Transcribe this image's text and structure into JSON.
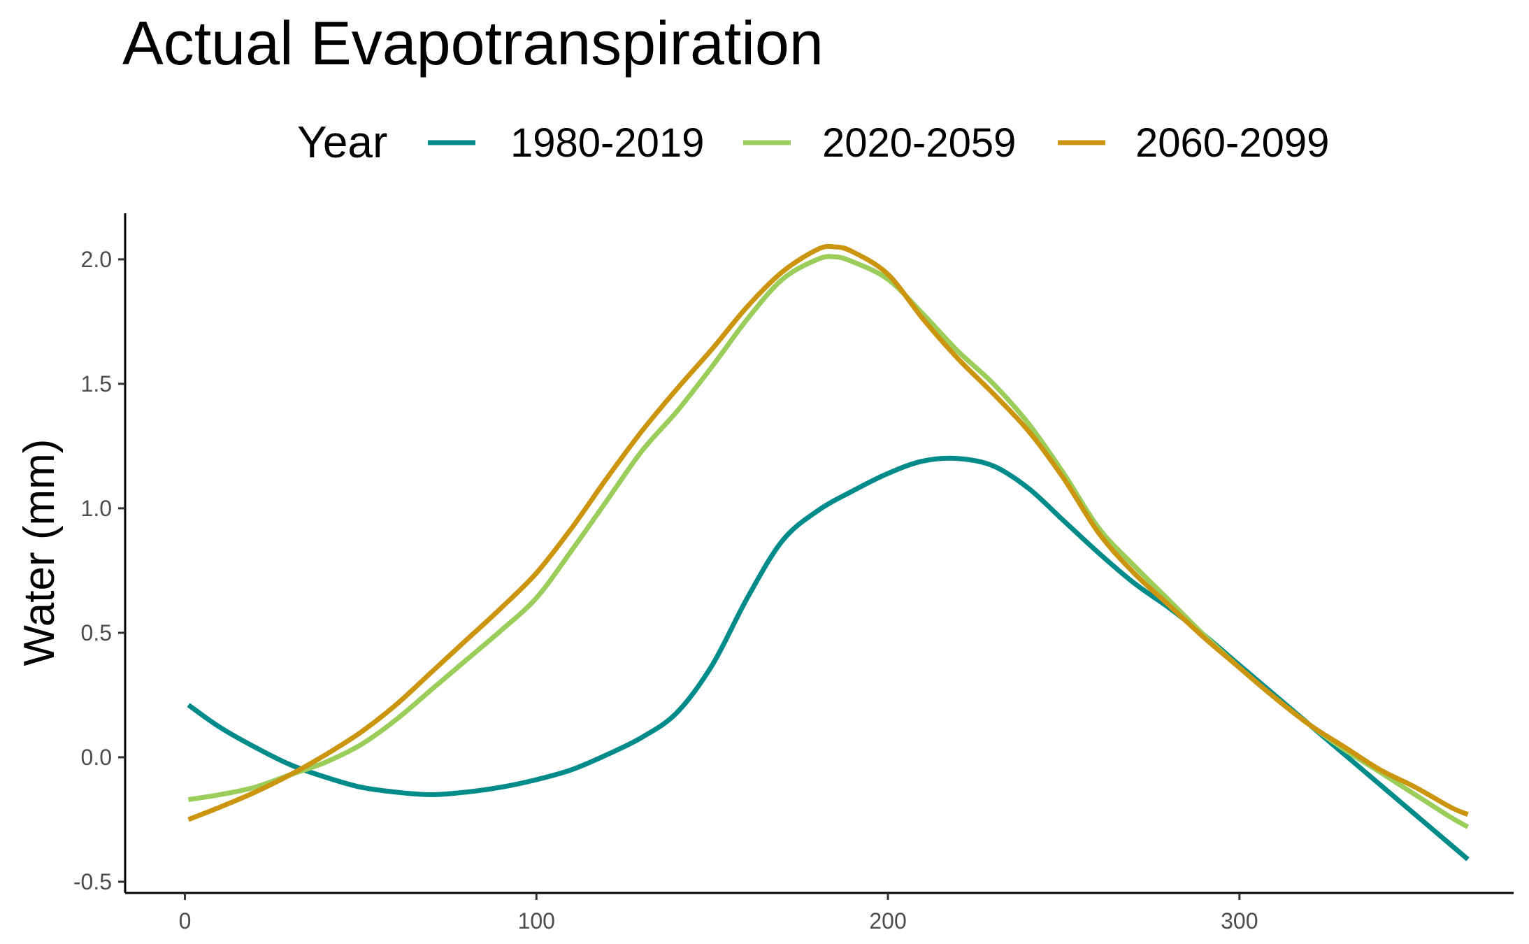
{
  "chart_data": {
    "type": "line",
    "title": "Actual Evapotranspiration",
    "xlabel": "",
    "ylabel": "Water (mm)",
    "xlim": [
      -17,
      378
    ],
    "ylim": [
      -0.545,
      2.185
    ],
    "x_ticks": [
      0,
      100,
      200,
      300
    ],
    "y_ticks": [
      -0.5,
      0.0,
      0.5,
      1.0,
      1.5,
      2.0
    ],
    "x_tick_labels": [
      "0",
      "100",
      "200",
      "300"
    ],
    "y_tick_labels": [
      "-0.5",
      "0.0",
      "0.5",
      "1.0",
      "1.5",
      "2.0"
    ],
    "grid": false,
    "legend": {
      "title": "Year",
      "position": "top",
      "entries": [
        "1980-2019",
        "2020-2059",
        "2060-2099"
      ]
    },
    "series": [
      {
        "name": "1980-2019",
        "color": "#008B8B",
        "x": [
          1,
          10,
          20,
          30,
          40,
          50,
          60,
          70,
          80,
          90,
          100,
          110,
          120,
          130,
          140,
          150,
          160,
          170,
          180,
          190,
          200,
          210,
          220,
          230,
          240,
          250,
          260,
          270,
          280,
          290,
          300,
          310,
          320,
          330,
          340,
          350,
          360,
          365
        ],
        "y": [
          0.21,
          0.12,
          0.04,
          -0.03,
          -0.08,
          -0.12,
          -0.14,
          -0.15,
          -0.14,
          -0.12,
          -0.09,
          -0.05,
          0.01,
          0.08,
          0.18,
          0.37,
          0.64,
          0.87,
          0.99,
          1.07,
          1.14,
          1.19,
          1.2,
          1.17,
          1.08,
          0.95,
          0.82,
          0.7,
          0.6,
          0.49,
          0.37,
          0.25,
          0.13,
          0.01,
          -0.11,
          -0.23,
          -0.35,
          -0.41
        ]
      },
      {
        "name": "2020-2059",
        "color": "#9ACD5A",
        "x": [
          1,
          10,
          20,
          30,
          40,
          50,
          60,
          70,
          80,
          90,
          100,
          110,
          120,
          130,
          140,
          150,
          160,
          170,
          180,
          185,
          190,
          200,
          210,
          220,
          230,
          240,
          250,
          260,
          270,
          280,
          290,
          300,
          310,
          320,
          330,
          340,
          350,
          360,
          365
        ],
        "y": [
          -0.17,
          -0.15,
          -0.12,
          -0.07,
          -0.02,
          0.05,
          0.15,
          0.27,
          0.39,
          0.51,
          0.64,
          0.83,
          1.03,
          1.23,
          1.39,
          1.57,
          1.76,
          1.92,
          2.0,
          2.01,
          1.99,
          1.92,
          1.78,
          1.63,
          1.5,
          1.34,
          1.14,
          0.92,
          0.77,
          0.63,
          0.49,
          0.36,
          0.24,
          0.13,
          0.03,
          -0.06,
          -0.15,
          -0.24,
          -0.28
        ]
      },
      {
        "name": "2060-2099",
        "color": "#CC9510",
        "x": [
          1,
          10,
          20,
          30,
          40,
          50,
          60,
          70,
          80,
          90,
          100,
          110,
          120,
          130,
          140,
          150,
          160,
          170,
          180,
          185,
          190,
          200,
          210,
          220,
          230,
          240,
          250,
          260,
          270,
          280,
          290,
          300,
          310,
          320,
          330,
          340,
          350,
          360,
          365
        ],
        "y": [
          -0.25,
          -0.2,
          -0.14,
          -0.07,
          0.01,
          0.1,
          0.21,
          0.34,
          0.47,
          0.6,
          0.74,
          0.92,
          1.12,
          1.31,
          1.48,
          1.64,
          1.81,
          1.95,
          2.04,
          2.05,
          2.03,
          1.94,
          1.76,
          1.6,
          1.46,
          1.31,
          1.12,
          0.9,
          0.74,
          0.61,
          0.48,
          0.36,
          0.24,
          0.13,
          0.04,
          -0.05,
          -0.12,
          -0.2,
          -0.23
        ]
      }
    ]
  }
}
